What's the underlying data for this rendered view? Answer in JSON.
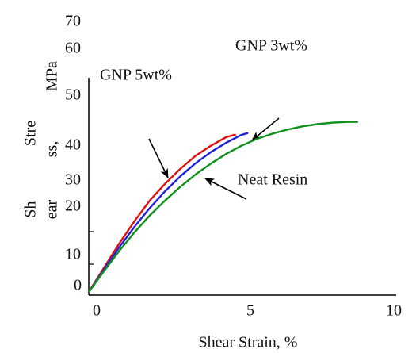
{
  "chart_data": {
    "type": "line",
    "title": "",
    "xlabel": "Shear Strain, %",
    "ylabel_parts": [
      "Sh",
      "ear",
      "Stre",
      "ss,",
      "MPa"
    ],
    "xlim": [
      0,
      10
    ],
    "ylim": [
      0,
      70
    ],
    "x_tick_labels": [
      "0",
      "5",
      "10"
    ],
    "y_tick_labels": [
      "0",
      "10",
      "20",
      "30",
      "40",
      "50",
      "60",
      "70"
    ],
    "grid": false,
    "annotations": [
      {
        "text": "GNP 5wt%"
      },
      {
        "text": "GNP 3wt%"
      },
      {
        "text": "Neat Resin"
      }
    ],
    "series": [
      {
        "color": "#e01010",
        "x": [
          0,
          0.5,
          1,
          1.5,
          2,
          2.5,
          3,
          3.5,
          4,
          4.5,
          4.8
        ],
        "y": [
          0,
          6.5,
          13,
          19,
          24.5,
          29,
          33,
          36.5,
          39.2,
          41.5,
          42.2
        ]
      },
      {
        "color": "#2020e0",
        "x": [
          0,
          0.5,
          1,
          1.5,
          2,
          2.5,
          3,
          3.5,
          4,
          4.5,
          5,
          5.2
        ],
        "y": [
          0,
          6,
          12,
          17.5,
          22.5,
          27,
          31,
          34.5,
          37.5,
          40,
          42.1,
          42.6
        ]
      },
      {
        "color": "#10901a",
        "x": [
          0,
          0.5,
          1,
          1.5,
          2,
          2.5,
          3,
          3.5,
          4,
          4.5,
          5,
          5.5,
          6,
          6.5,
          7,
          7.5,
          8,
          8.5,
          8.8
        ],
        "y": [
          0,
          5.6,
          11,
          16,
          20.5,
          24.5,
          28.2,
          31.5,
          34.4,
          37,
          39.2,
          41,
          42.4,
          43.5,
          44.4,
          45,
          45.4,
          45.6,
          45.6
        ]
      }
    ]
  }
}
